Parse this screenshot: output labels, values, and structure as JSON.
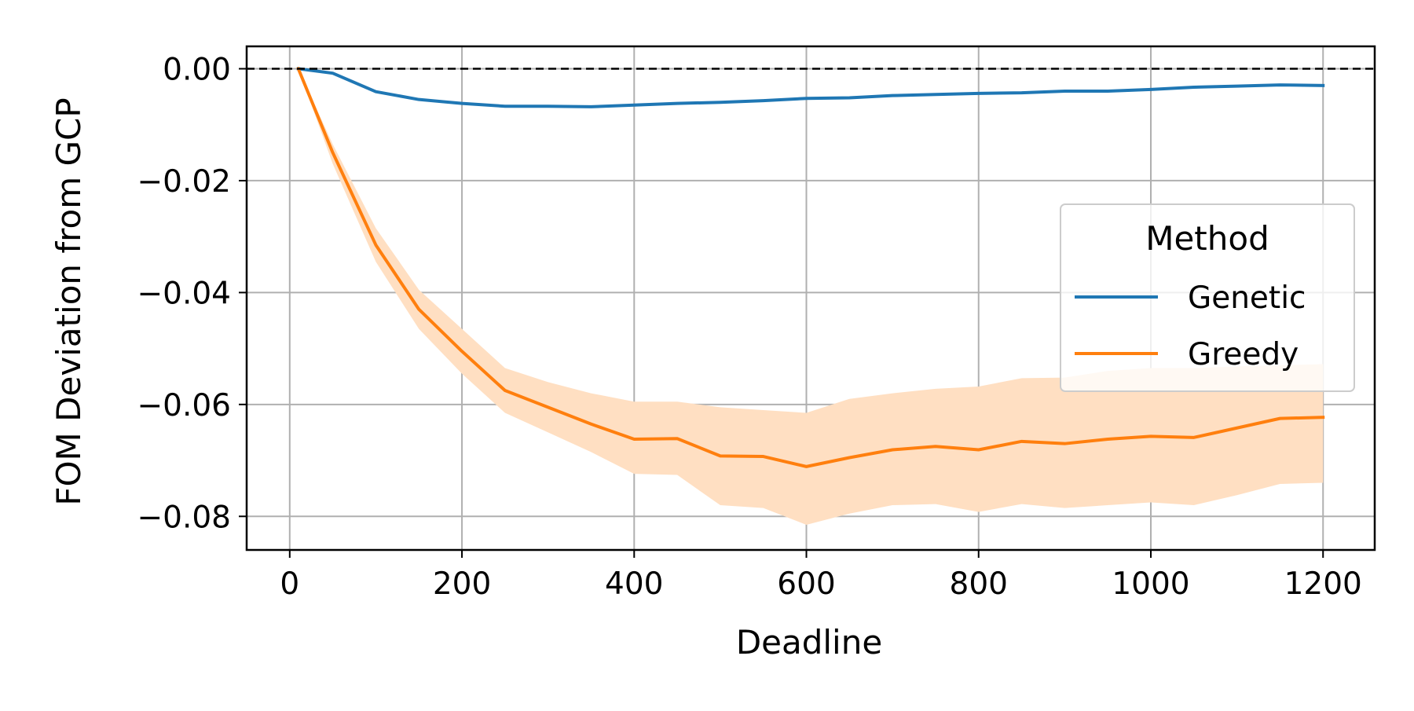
{
  "chart_data": {
    "type": "line",
    "xlabel": "Deadline",
    "ylabel": "FOM Deviation from GCP",
    "xlim": [
      -50,
      1260
    ],
    "ylim": [
      -0.086,
      0.004
    ],
    "xticks": [
      0,
      200,
      400,
      600,
      800,
      1000,
      1200
    ],
    "xtick_labels": [
      "0",
      "200",
      "400",
      "600",
      "800",
      "1000",
      "1200"
    ],
    "yticks": [
      0.0,
      -0.02,
      -0.04,
      -0.06,
      -0.08
    ],
    "ytick_labels": [
      "0.00",
      "−0.02",
      "−0.04",
      "−0.06",
      "−0.08"
    ],
    "grid": true,
    "reference_line": {
      "y": 0.0,
      "style": "dashed",
      "color": "#000000"
    },
    "legend": {
      "title": "Method",
      "position": "center-right"
    },
    "series": [
      {
        "name": "Genetic",
        "color": "#1f77b4",
        "x": [
          10,
          50,
          100,
          150,
          200,
          250,
          300,
          350,
          400,
          450,
          500,
          550,
          600,
          650,
          700,
          750,
          800,
          850,
          900,
          950,
          1000,
          1050,
          1100,
          1150,
          1200
        ],
        "values": [
          0.0,
          -0.0008,
          -0.0041,
          -0.0055,
          -0.0062,
          -0.0067,
          -0.0067,
          -0.0068,
          -0.0065,
          -0.0062,
          -0.006,
          -0.0057,
          -0.0053,
          -0.0052,
          -0.0048,
          -0.0046,
          -0.0044,
          -0.0043,
          -0.004,
          -0.004,
          -0.0037,
          -0.0033,
          -0.0031,
          -0.0029,
          -0.003
        ],
        "band_low": [
          0.0,
          -0.0009,
          -0.0043,
          -0.0057,
          -0.0064,
          -0.0069,
          -0.0069,
          -0.007,
          -0.0067,
          -0.0064,
          -0.0062,
          -0.0059,
          -0.0055,
          -0.0054,
          -0.005,
          -0.0048,
          -0.0046,
          -0.0045,
          -0.0042,
          -0.0042,
          -0.0039,
          -0.0035,
          -0.0033,
          -0.0031,
          -0.0032
        ],
        "band_high": [
          0.0,
          -0.0007,
          -0.0039,
          -0.0053,
          -0.006,
          -0.0065,
          -0.0065,
          -0.0066,
          -0.0063,
          -0.006,
          -0.0058,
          -0.0055,
          -0.0051,
          -0.005,
          -0.0046,
          -0.0044,
          -0.0042,
          -0.0041,
          -0.0038,
          -0.0038,
          -0.0035,
          -0.0031,
          -0.0029,
          -0.0027,
          -0.0028
        ]
      },
      {
        "name": "Greedy",
        "color": "#ff7f0e",
        "band_color": "#ffdfc2",
        "x": [
          10,
          50,
          100,
          150,
          200,
          250,
          300,
          350,
          400,
          450,
          500,
          550,
          600,
          650,
          700,
          750,
          800,
          850,
          900,
          950,
          1000,
          1050,
          1100,
          1150,
          1200
        ],
        "values": [
          0.0,
          -0.015,
          -0.0315,
          -0.043,
          -0.0505,
          -0.0575,
          -0.0605,
          -0.0635,
          -0.0662,
          -0.0661,
          -0.0692,
          -0.0693,
          -0.0711,
          -0.0695,
          -0.0681,
          -0.0675,
          -0.0681,
          -0.0666,
          -0.067,
          -0.0662,
          -0.0657,
          -0.0659,
          -0.0642,
          -0.0625,
          -0.0623
        ],
        "band_low": [
          0.0,
          -0.017,
          -0.0345,
          -0.0465,
          -0.0545,
          -0.0615,
          -0.065,
          -0.0685,
          -0.0724,
          -0.0726,
          -0.078,
          -0.0785,
          -0.0815,
          -0.0795,
          -0.078,
          -0.0778,
          -0.0792,
          -0.0778,
          -0.0785,
          -0.078,
          -0.0775,
          -0.078,
          -0.0762,
          -0.0742,
          -0.074
        ],
        "band_high": [
          0.0,
          -0.0135,
          -0.0285,
          -0.0395,
          -0.0465,
          -0.0535,
          -0.056,
          -0.058,
          -0.0595,
          -0.0595,
          -0.0605,
          -0.061,
          -0.0615,
          -0.059,
          -0.058,
          -0.0572,
          -0.0568,
          -0.0553,
          -0.0552,
          -0.054,
          -0.0535,
          -0.0535,
          -0.0532,
          -0.053,
          -0.0528
        ]
      }
    ]
  }
}
